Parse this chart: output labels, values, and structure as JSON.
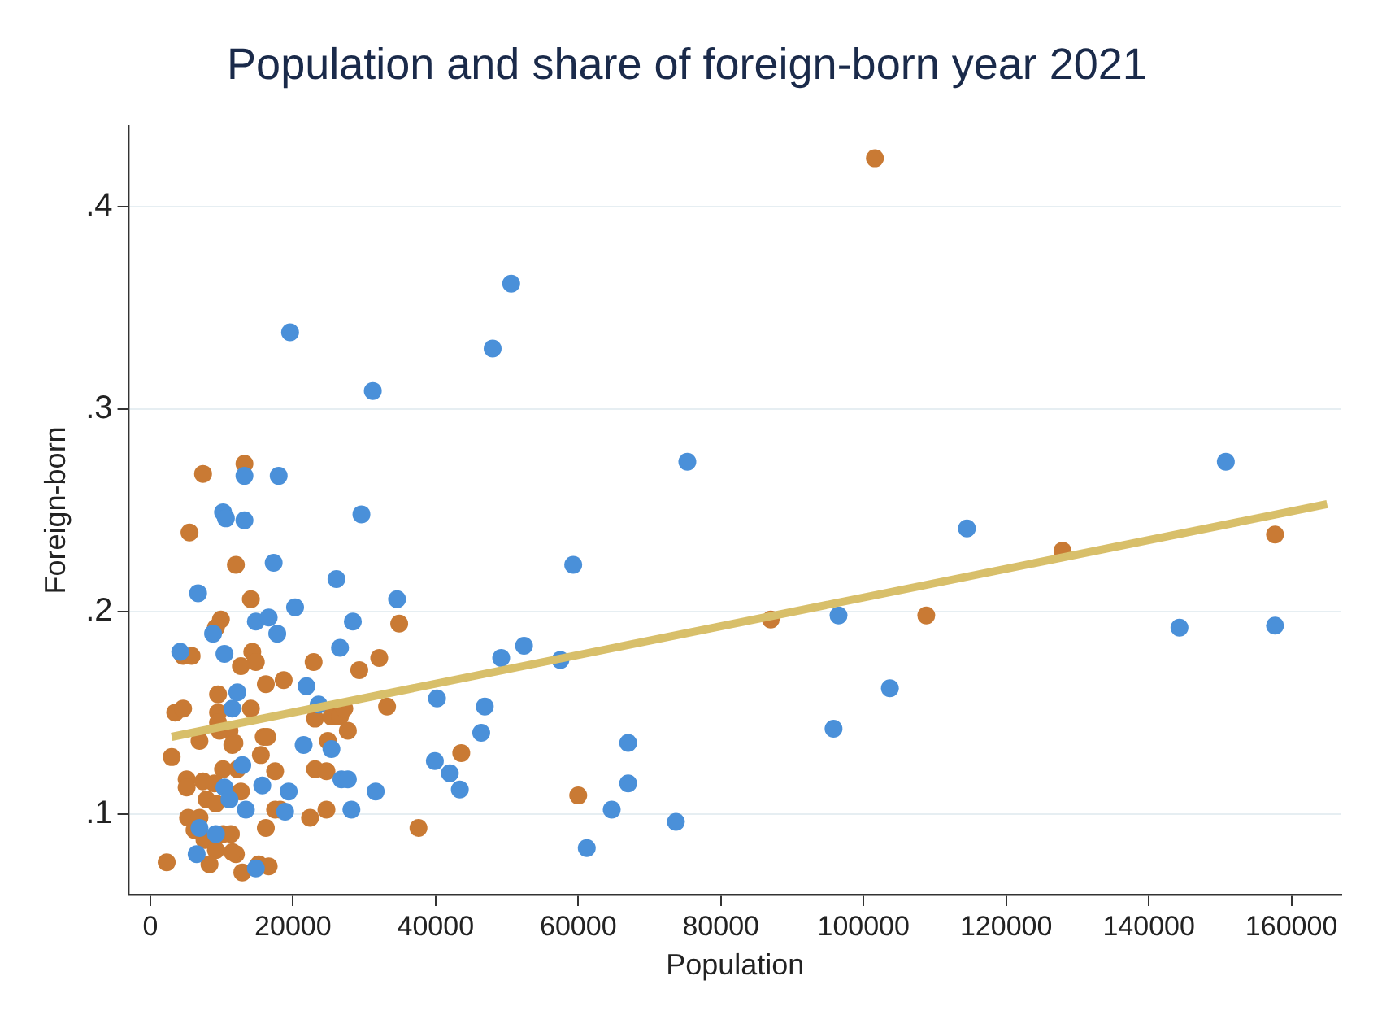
{
  "chart_data": {
    "type": "scatter",
    "title": "Population and share of foreign-born year 2021",
    "xlabel": "Population",
    "ylabel": "Foreign-born",
    "xlim": [
      -3000,
      167000
    ],
    "xticks": [
      0,
      20000,
      40000,
      60000,
      80000,
      100000,
      120000,
      140000,
      160000
    ],
    "ylim": [
      0.06,
      0.44
    ],
    "yticks": [
      {
        "value": 0.1,
        "label": ".1"
      },
      {
        "value": 0.2,
        "label": ".2"
      },
      {
        "value": 0.3,
        "label": ".3"
      },
      {
        "value": 0.4,
        "label": ".4"
      }
    ],
    "grid": "y",
    "legend": false,
    "marker": "circle",
    "series": [
      {
        "color": "#4a90d9",
        "x": [
          19600,
          50600,
          48000,
          31200,
          75300,
          150800,
          114500,
          96500,
          144300,
          157700,
          103700,
          95800,
          59300,
          49200,
          52400,
          57500,
          40200,
          46900,
          46400,
          39900,
          42000,
          43400,
          67000,
          67000,
          64700,
          73700,
          61200,
          13200,
          18000,
          10200,
          10600,
          13200,
          29600,
          17300,
          6700,
          26100,
          20300,
          34600,
          14800,
          16600,
          8800,
          17800,
          28400,
          4200,
          10400,
          26600,
          21900,
          12200,
          11500,
          23600,
          21500,
          25400,
          12900,
          26800,
          27700,
          10400,
          15700,
          19400,
          11100,
          31600,
          13400,
          18900,
          28200,
          6900,
          9200,
          6500,
          14800
        ],
        "values": [
          0.338,
          0.362,
          0.33,
          0.309,
          0.274,
          0.274,
          0.241,
          0.198,
          0.192,
          0.193,
          0.162,
          0.142,
          0.223,
          0.177,
          0.183,
          0.176,
          0.157,
          0.153,
          0.14,
          0.126,
          0.12,
          0.112,
          0.135,
          0.115,
          0.102,
          0.096,
          0.083,
          0.267,
          0.267,
          0.249,
          0.246,
          0.245,
          0.248,
          0.224,
          0.209,
          0.216,
          0.202,
          0.206,
          0.195,
          0.197,
          0.189,
          0.189,
          0.195,
          0.18,
          0.179,
          0.182,
          0.163,
          0.16,
          0.152,
          0.154,
          0.134,
          0.132,
          0.124,
          0.117,
          0.117,
          0.113,
          0.114,
          0.111,
          0.107,
          0.111,
          0.102,
          0.101,
          0.102,
          0.093,
          0.09,
          0.08,
          0.073
        ]
      },
      {
        "color": "#c97a34",
        "x": [
          101600,
          127900,
          157700,
          87000,
          108800,
          43600,
          60000,
          7400,
          13200,
          5500,
          12000,
          14100,
          9900,
          9200,
          4600,
          5800,
          14300,
          14800,
          12700,
          22900,
          32100,
          29300,
          16200,
          18700,
          9500,
          3500,
          4600,
          9500,
          14100,
          23100,
          25400,
          26600,
          27200,
          33200,
          9500,
          11100,
          11800,
          9700,
          11500,
          6900,
          15900,
          16400,
          24900,
          27700,
          3000,
          15500,
          10200,
          12200,
          17500,
          23100,
          24700,
          5100,
          5100,
          7400,
          9000,
          12700,
          7900,
          9200,
          17500,
          18200,
          22400,
          24700,
          37600,
          5300,
          6900,
          6200,
          7600,
          10200,
          11300,
          16200,
          9200,
          12000,
          11500,
          2300,
          8300,
          12900,
          15200,
          16600,
          34900
        ],
        "values": [
          0.424,
          0.23,
          0.238,
          0.196,
          0.198,
          0.13,
          0.109,
          0.268,
          0.273,
          0.239,
          0.223,
          0.206,
          0.196,
          0.192,
          0.178,
          0.178,
          0.18,
          0.175,
          0.173,
          0.175,
          0.177,
          0.171,
          0.164,
          0.166,
          0.159,
          0.15,
          0.152,
          0.15,
          0.152,
          0.147,
          0.148,
          0.148,
          0.152,
          0.153,
          0.145,
          0.141,
          0.135,
          0.141,
          0.134,
          0.136,
          0.138,
          0.138,
          0.136,
          0.141,
          0.128,
          0.129,
          0.122,
          0.122,
          0.121,
          0.122,
          0.121,
          0.117,
          0.113,
          0.116,
          0.115,
          0.111,
          0.107,
          0.105,
          0.102,
          0.102,
          0.098,
          0.102,
          0.093,
          0.098,
          0.098,
          0.092,
          0.087,
          0.09,
          0.09,
          0.093,
          0.082,
          0.08,
          0.081,
          0.076,
          0.075,
          0.071,
          0.075,
          0.074,
          0.194
        ]
      },
      {
        "type": "line",
        "color": "#d8bf6a",
        "marker": "none",
        "x": [
          3000,
          165000
        ],
        "values": [
          0.138,
          0.253
        ]
      }
    ]
  }
}
